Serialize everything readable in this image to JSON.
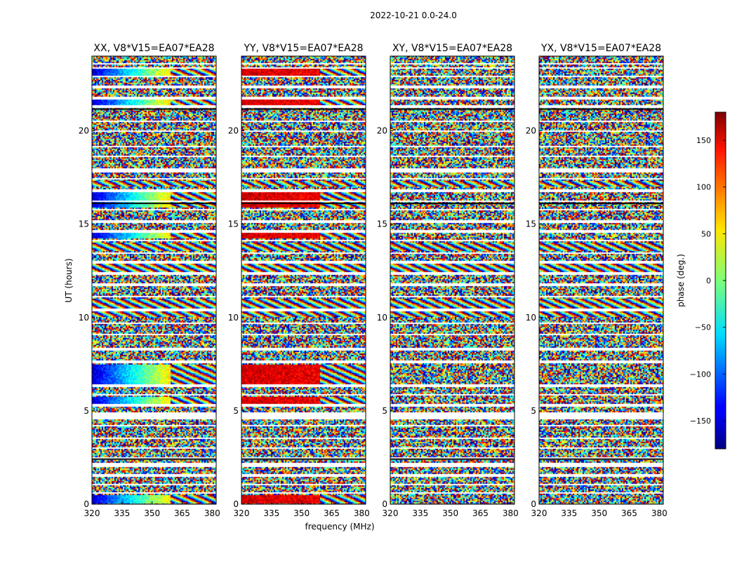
{
  "chart_data": {
    "type": "heatmap",
    "suptitle": "2022-10-21 0.0-24.0",
    "xlabel": "frequency (MHz)",
    "ylabel": "UT (hours)",
    "xlim": [
      320,
      382
    ],
    "ylim": [
      0,
      24
    ],
    "x_ticks": [
      320,
      335,
      350,
      365,
      380
    ],
    "y_ticks": [
      0,
      5,
      10,
      15,
      20
    ],
    "panels": [
      {
        "title": "XX, V8*V15=EA07*EA28",
        "pol": "XX"
      },
      {
        "title": "YY, V8*V15=EA07*EA28",
        "pol": "YY"
      },
      {
        "title": "XY, V8*V15=EA07*EA28",
        "pol": "XY"
      },
      {
        "title": "YX, V8*V15=EA07*EA28",
        "pol": "YX"
      }
    ],
    "colorbar": {
      "label": "phase (deg.)",
      "range": [
        -180,
        180
      ],
      "ticks": [
        -150,
        -100,
        -50,
        0,
        50,
        100,
        150
      ],
      "tick_labels": [
        "−150",
        "−100",
        "−50",
        "0",
        "50",
        "100",
        "150"
      ],
      "colormap": "jet"
    },
    "flagged_hours": [
      [
        0.55,
        0.62
      ],
      [
        1.05,
        1.12
      ],
      [
        1.5,
        1.6
      ],
      [
        2.0,
        2.25
      ],
      [
        2.4,
        2.5
      ],
      [
        2.95,
        3.05
      ],
      [
        3.5,
        3.6
      ],
      [
        4.15,
        4.25
      ],
      [
        4.55,
        4.95
      ],
      [
        5.25,
        5.35
      ],
      [
        5.8,
        5.9
      ],
      [
        6.3,
        6.4
      ],
      [
        7.55,
        7.7
      ],
      [
        8.25,
        8.35
      ],
      [
        9.05,
        9.15
      ],
      [
        9.65,
        9.75
      ],
      [
        10.3,
        10.45
      ],
      [
        11.05,
        11.15
      ],
      [
        11.65,
        11.85
      ],
      [
        12.3,
        12.4
      ],
      [
        12.9,
        13.0
      ],
      [
        13.4,
        13.5
      ],
      [
        14.05,
        14.15
      ],
      [
        14.55,
        14.65
      ],
      [
        15.05,
        15.2
      ],
      [
        15.7,
        15.8
      ],
      [
        16.2,
        16.3
      ],
      [
        16.75,
        16.85
      ],
      [
        17.4,
        17.5
      ],
      [
        17.8,
        18.0
      ],
      [
        18.6,
        18.7
      ],
      [
        19.1,
        19.2
      ],
      [
        19.95,
        20.05
      ],
      [
        20.45,
        20.55
      ],
      [
        21.2,
        21.35
      ],
      [
        21.7,
        21.8
      ],
      [
        22.3,
        22.45
      ],
      [
        22.85,
        22.95
      ],
      [
        23.3,
        23.4
      ],
      [
        23.55,
        23.6
      ]
    ],
    "coherent_bands_hours": [
      [
        0.05,
        0.5
      ],
      [
        5.4,
        5.75
      ],
      [
        6.45,
        7.5
      ],
      [
        14.2,
        14.5
      ],
      [
        15.9,
        16.7
      ],
      [
        21.35,
        21.65
      ],
      [
        22.95,
        23.3
      ]
    ],
    "phase_gradient_bands_hours": [
      [
        10.05,
        11.0
      ],
      [
        12.45,
        12.85
      ],
      [
        13.55,
        14.0
      ],
      [
        17.05,
        17.35
      ]
    ]
  }
}
